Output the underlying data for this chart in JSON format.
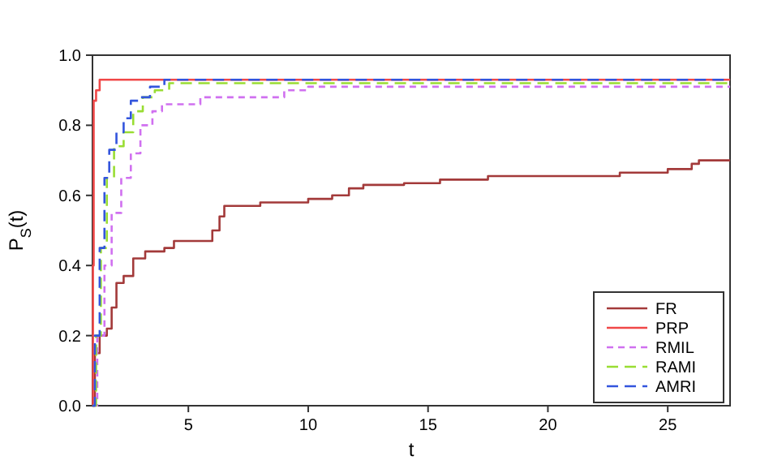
{
  "chart_data": {
    "type": "step",
    "xlabel": "t",
    "ylabel": "P$_{S}$(t)",
    "xlim": [
      1,
      27.6
    ],
    "xticks": [
      5,
      10,
      15,
      20,
      25
    ],
    "ylim": [
      0,
      1
    ],
    "yticks": [
      {
        "value": 0,
        "label": "0.0"
      },
      {
        "value": 0.2,
        "label": "0.2"
      },
      {
        "value": 0.4,
        "label": "0.4"
      },
      {
        "value": 0.6,
        "label": "0.6"
      },
      {
        "value": 0.8,
        "label": "0.8"
      },
      {
        "value": 1,
        "label": "1.0"
      }
    ],
    "legend": "bottom right",
    "grid": false,
    "marker": "none",
    "series": [
      {
        "name": "FR",
        "color": "#a33a3a",
        "line_style": "solid",
        "x": [
          1,
          1.1,
          1.3,
          1.6,
          1.8,
          2,
          2.3,
          2.7,
          3.2,
          4,
          4.4,
          5.8,
          6,
          6.3,
          6.5,
          8,
          10,
          11,
          11.7,
          12.3,
          14,
          15.5,
          17.5,
          23,
          25,
          26,
          26.3,
          27.6
        ],
        "values": [
          0,
          0.15,
          0.2,
          0.22,
          0.28,
          0.35,
          0.37,
          0.42,
          0.44,
          0.45,
          0.47,
          0.47,
          0.5,
          0.54,
          0.57,
          0.58,
          0.59,
          0.6,
          0.62,
          0.63,
          0.635,
          0.645,
          0.655,
          0.665,
          0.675,
          0.69,
          0.7,
          0.7
        ]
      },
      {
        "name": "PRP",
        "color": "#f04848",
        "line_style": "solid",
        "x": [
          1,
          1.02,
          1.05,
          1.15,
          1.3,
          27.6
        ],
        "values": [
          0,
          0.4,
          0.87,
          0.9,
          0.93,
          0.93
        ]
      },
      {
        "name": "RMIL",
        "color": "#d070f0",
        "line_style": "dotted",
        "x": [
          1,
          1.2,
          1.5,
          1.8,
          2.2,
          2.6,
          3,
          3.5,
          3.9,
          5,
          5.5,
          8.5,
          9,
          10,
          27.6
        ],
        "values": [
          0,
          0.2,
          0.4,
          0.55,
          0.65,
          0.72,
          0.8,
          0.84,
          0.86,
          0.86,
          0.88,
          0.88,
          0.9,
          0.91,
          0.91
        ]
      },
      {
        "name": "RAMI",
        "color": "#99dd33",
        "line_style": "dashed",
        "x": [
          1,
          1.15,
          1.35,
          1.6,
          1.9,
          2.3,
          2.7,
          3.1,
          3.6,
          4.2,
          10,
          27.6
        ],
        "values": [
          0,
          0.2,
          0.45,
          0.65,
          0.74,
          0.78,
          0.84,
          0.88,
          0.9,
          0.92,
          0.92,
          0.92
        ]
      },
      {
        "name": "AMRI",
        "color": "#3355dd",
        "line_style": "dashed",
        "x": [
          1,
          1.1,
          1.3,
          1.5,
          1.7,
          2,
          2.3,
          2.6,
          3,
          3.4,
          4,
          27.6
        ],
        "values": [
          0,
          0.2,
          0.45,
          0.65,
          0.73,
          0.78,
          0.82,
          0.87,
          0.88,
          0.91,
          0.93,
          0.93
        ]
      }
    ]
  }
}
